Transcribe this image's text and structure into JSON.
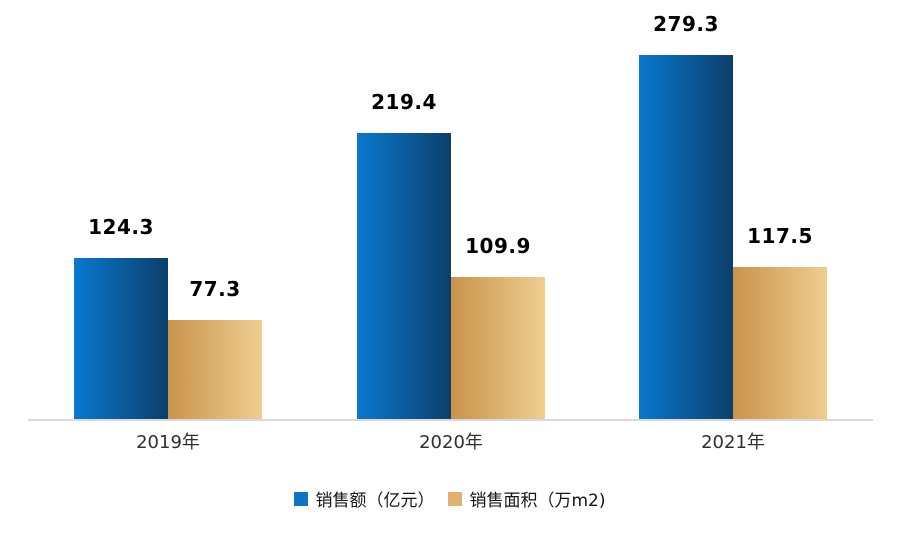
{
  "chart_data": {
    "type": "bar",
    "title": "",
    "xlabel": "",
    "ylabel": "",
    "categories": [
      "2019年",
      "2020年",
      "2021年"
    ],
    "series": [
      {
        "name": "销售额（亿元）",
        "values": [
          124.3,
          219.4,
          279.3
        ],
        "bar_gradient_start": "#0a78cf",
        "bar_gradient_end": "#0b3f6b",
        "legend_color": "#1273c4"
      },
      {
        "name": "销售面积（万m2)",
        "values": [
          77.3,
          109.9,
          117.5
        ],
        "bar_gradient_start": "#c9934c",
        "bar_gradient_end": "#efce90",
        "legend_color": "#e2b273"
      }
    ],
    "ylim": [
      0,
      321
    ],
    "grid": false,
    "legend_position": "bottom",
    "axis_line_color": "#d9d9d9",
    "background": "#ffffff",
    "value_label_color": "#000000",
    "category_label_color": "#303030"
  }
}
